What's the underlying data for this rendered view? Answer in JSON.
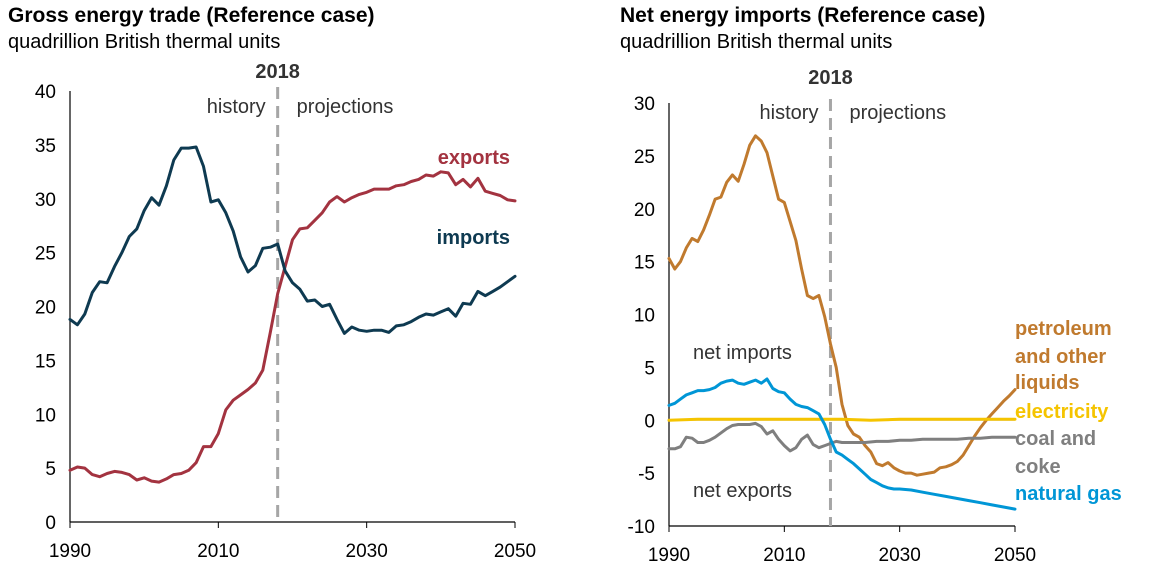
{
  "chart_data": [
    {
      "type": "line",
      "title": "Gross energy trade (Reference case)",
      "subtitle": "quadrillion British thermal units",
      "xlim": [
        1990,
        2050
      ],
      "ylim": [
        0,
        40
      ],
      "xticks": [
        1990,
        2010,
        2030,
        2050
      ],
      "yticks": [
        0,
        5,
        10,
        15,
        20,
        25,
        30,
        35,
        40
      ],
      "divider_year": 2018,
      "divider_label": "2018",
      "history_label": "history",
      "projections_label": "projections",
      "series": [
        {
          "name": "exports",
          "color": "#a33340",
          "x": [
            1990,
            1991,
            1992,
            1993,
            1994,
            1995,
            1996,
            1997,
            1998,
            1999,
            2000,
            2001,
            2002,
            2003,
            2004,
            2005,
            2006,
            2007,
            2008,
            2009,
            2010,
            2011,
            2012,
            2013,
            2014,
            2015,
            2016,
            2017,
            2018,
            2019,
            2020,
            2021,
            2022,
            2023,
            2024,
            2025,
            2026,
            2027,
            2028,
            2029,
            2030,
            2031,
            2032,
            2033,
            2034,
            2035,
            2036,
            2037,
            2038,
            2039,
            2040,
            2041,
            2042,
            2043,
            2044,
            2045,
            2046,
            2047,
            2048,
            2049,
            2050
          ],
          "y": [
            4.8,
            5.1,
            5.0,
            4.4,
            4.2,
            4.5,
            4.7,
            4.6,
            4.4,
            3.9,
            4.1,
            3.8,
            3.7,
            4.0,
            4.4,
            4.5,
            4.8,
            5.5,
            7.0,
            7.0,
            8.2,
            10.4,
            11.3,
            11.8,
            12.3,
            12.9,
            14.1,
            17.6,
            21.2,
            23.7,
            26.2,
            27.2,
            27.3,
            28.0,
            28.7,
            29.7,
            30.2,
            29.7,
            30.1,
            30.4,
            30.6,
            30.9,
            30.9,
            30.9,
            31.2,
            31.3,
            31.6,
            31.8,
            32.2,
            32.1,
            32.5,
            32.4,
            31.3,
            31.8,
            31.1,
            31.9,
            30.7,
            30.5,
            30.3,
            29.9,
            29.8
          ]
        },
        {
          "name": "imports",
          "color": "#0e3a51",
          "x": [
            1990,
            1991,
            1992,
            1993,
            1994,
            1995,
            1996,
            1997,
            1998,
            1999,
            2000,
            2001,
            2002,
            2003,
            2004,
            2005,
            2006,
            2007,
            2008,
            2009,
            2010,
            2011,
            2012,
            2013,
            2014,
            2015,
            2016,
            2017,
            2018,
            2019,
            2020,
            2021,
            2022,
            2023,
            2024,
            2025,
            2026,
            2027,
            2028,
            2029,
            2030,
            2031,
            2032,
            2033,
            2034,
            2035,
            2036,
            2037,
            2038,
            2039,
            2040,
            2041,
            2042,
            2043,
            2044,
            2045,
            2046,
            2047,
            2048,
            2049,
            2050
          ],
          "y": [
            18.8,
            18.3,
            19.3,
            21.3,
            22.3,
            22.2,
            23.7,
            25.0,
            26.5,
            27.2,
            28.9,
            30.1,
            29.4,
            31.2,
            33.6,
            34.7,
            34.7,
            34.8,
            33.0,
            29.7,
            29.9,
            28.7,
            27.0,
            24.6,
            23.2,
            23.8,
            25.4,
            25.5,
            25.8,
            23.3,
            22.2,
            21.6,
            20.5,
            20.6,
            20.0,
            20.2,
            18.8,
            17.5,
            18.1,
            17.8,
            17.7,
            17.8,
            17.8,
            17.6,
            18.2,
            18.3,
            18.6,
            19.0,
            19.3,
            19.2,
            19.5,
            19.8,
            19.1,
            20.3,
            20.2,
            21.4,
            21.0,
            21.4,
            21.8,
            22.3,
            22.8
          ]
        }
      ]
    },
    {
      "type": "line",
      "title": "Net energy imports (Reference case)",
      "subtitle": "quadrillion British thermal units",
      "xlim": [
        1990,
        2050
      ],
      "ylim": [
        -10,
        30
      ],
      "xticks": [
        1990,
        2010,
        2030,
        2050
      ],
      "yticks": [
        -10,
        -5,
        0,
        5,
        10,
        15,
        20,
        25,
        30
      ],
      "divider_year": 2018,
      "divider_label": "2018",
      "history_label": "history",
      "projections_label": "projections",
      "net_imports_label": "net imports",
      "net_exports_label": "net exports",
      "series": [
        {
          "name": "petroleum and other liquids",
          "label_lines": [
            "petroleum",
            "and other",
            "liquids"
          ],
          "color": "#c07a2e",
          "x": [
            1990,
            1991,
            1992,
            1993,
            1994,
            1995,
            1996,
            1997,
            1998,
            1999,
            2000,
            2001,
            2002,
            2003,
            2004,
            2005,
            2006,
            2007,
            2008,
            2009,
            2010,
            2011,
            2012,
            2013,
            2014,
            2015,
            2016,
            2017,
            2018,
            2019,
            2020,
            2021,
            2022,
            2023,
            2024,
            2025,
            2026,
            2027,
            2028,
            2029,
            2030,
            2031,
            2032,
            2033,
            2034,
            2035,
            2036,
            2037,
            2038,
            2039,
            2040,
            2041,
            2042,
            2043,
            2044,
            2045,
            2046,
            2047,
            2048,
            2049,
            2050
          ],
          "y": [
            15.3,
            14.3,
            15.0,
            16.3,
            17.2,
            16.9,
            18.0,
            19.4,
            20.9,
            21.1,
            22.5,
            23.2,
            22.6,
            24.2,
            26.0,
            26.9,
            26.4,
            25.3,
            23.1,
            20.9,
            20.6,
            18.8,
            17.0,
            14.3,
            11.8,
            11.5,
            11.8,
            9.8,
            7.2,
            5.0,
            1.5,
            -0.5,
            -1.3,
            -1.6,
            -2.4,
            -3.0,
            -4.1,
            -4.3,
            -4.0,
            -4.5,
            -4.8,
            -5.0,
            -5.0,
            -5.2,
            -5.1,
            -5.0,
            -4.9,
            -4.5,
            -4.4,
            -4.2,
            -3.9,
            -3.3,
            -2.4,
            -1.5,
            -0.7,
            0.0,
            0.6,
            1.2,
            1.8,
            2.3,
            2.9
          ]
        },
        {
          "name": "electricity",
          "color": "#f5c400",
          "x": [
            1990,
            1995,
            2000,
            2005,
            2010,
            2015,
            2018,
            2020,
            2025,
            2030,
            2035,
            2040,
            2045,
            2050
          ],
          "y": [
            0.0,
            0.1,
            0.1,
            0.1,
            0.1,
            0.1,
            0.1,
            0.1,
            0.0,
            0.1,
            0.1,
            0.1,
            0.1,
            0.1
          ]
        },
        {
          "name": "coal and coke",
          "label_lines": [
            "coal and",
            "coke"
          ],
          "color": "#7f7f7f",
          "x": [
            1990,
            1991,
            1992,
            1993,
            1994,
            1995,
            1996,
            1997,
            1998,
            1999,
            2000,
            2001,
            2002,
            2003,
            2004,
            2005,
            2006,
            2007,
            2008,
            2009,
            2010,
            2011,
            2012,
            2013,
            2014,
            2015,
            2016,
            2017,
            2018,
            2019,
            2020,
            2022,
            2024,
            2026,
            2028,
            2030,
            2032,
            2034,
            2036,
            2038,
            2040,
            2042,
            2044,
            2046,
            2048,
            2050
          ],
          "y": [
            -2.7,
            -2.7,
            -2.5,
            -1.6,
            -1.7,
            -2.1,
            -2.1,
            -1.9,
            -1.6,
            -1.2,
            -0.8,
            -0.5,
            -0.4,
            -0.4,
            -0.4,
            -0.3,
            -0.6,
            -1.3,
            -1.0,
            -1.8,
            -2.4,
            -2.9,
            -2.6,
            -1.8,
            -1.4,
            -2.3,
            -2.6,
            -2.4,
            -2.2,
            -2.0,
            -2.1,
            -2.1,
            -2.1,
            -2.0,
            -2.0,
            -1.9,
            -1.9,
            -1.8,
            -1.8,
            -1.8,
            -1.8,
            -1.7,
            -1.7,
            -1.6,
            -1.6,
            -1.6
          ]
        },
        {
          "name": "natural gas",
          "color": "#0096d6",
          "x": [
            1990,
            1991,
            1992,
            1993,
            1994,
            1995,
            1996,
            1997,
            1998,
            1999,
            2000,
            2001,
            2002,
            2003,
            2004,
            2005,
            2006,
            2007,
            2008,
            2009,
            2010,
            2011,
            2012,
            2013,
            2014,
            2015,
            2016,
            2017,
            2018,
            2019,
            2020,
            2021,
            2022,
            2023,
            2024,
            2025,
            2026,
            2027,
            2028,
            2029,
            2030,
            2032,
            2034,
            2036,
            2038,
            2040,
            2042,
            2044,
            2046,
            2048,
            2050
          ],
          "y": [
            1.4,
            1.6,
            2.0,
            2.4,
            2.6,
            2.8,
            2.8,
            2.9,
            3.1,
            3.5,
            3.7,
            3.8,
            3.5,
            3.4,
            3.6,
            3.8,
            3.5,
            3.9,
            3.0,
            2.7,
            2.6,
            2.0,
            1.5,
            1.3,
            1.2,
            0.9,
            0.6,
            -0.4,
            -1.8,
            -3.0,
            -3.3,
            -3.7,
            -4.1,
            -4.6,
            -5.1,
            -5.6,
            -5.9,
            -6.2,
            -6.4,
            -6.5,
            -6.5,
            -6.6,
            -6.8,
            -7.0,
            -7.2,
            -7.4,
            -7.6,
            -7.8,
            -8.0,
            -8.2,
            -8.4
          ]
        }
      ]
    }
  ]
}
